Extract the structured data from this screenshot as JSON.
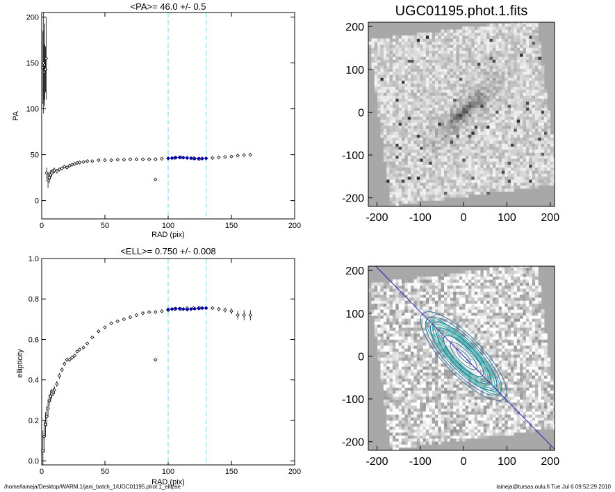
{
  "footer": {
    "left": "/home/laineja/Desktop/WARM.1/jani_batch_1/UGC01195.phot.1_ellipse",
    "right": "laineja@tursas.oulu.fi  Tue Jul  6 09:52:29 2010"
  },
  "colors": {
    "data": "#000000",
    "fit": "#0000aa",
    "marker": "#80e0e8",
    "contour": "#40b8b0",
    "pa_line": "#2020c0"
  },
  "chart_data": [
    {
      "type": "scatter",
      "title": "<PA>=  46.0 +/-   0.5",
      "xlabel": "RAD (pix)",
      "ylabel": "PA",
      "xlim": [
        0,
        200
      ],
      "ylim": [
        -20,
        205
      ],
      "xticks": [
        0,
        50,
        100,
        150,
        200
      ],
      "yticks": [
        0,
        50,
        100,
        150,
        200
      ],
      "vlines": [
        100,
        130
      ],
      "outlier": {
        "x": 90,
        "y": 23
      },
      "series": [
        {
          "x": [
            1,
            1.5,
            2,
            2.5,
            3,
            3.5,
            4,
            5,
            6,
            7,
            8,
            9,
            10,
            12,
            14,
            16,
            18,
            20,
            22,
            24,
            26,
            28,
            30,
            33,
            36,
            40,
            45,
            50,
            55,
            60,
            65,
            70,
            75,
            80,
            85,
            90,
            95,
            100,
            105,
            110,
            115,
            120,
            125,
            130,
            135,
            140,
            145,
            150,
            155,
            160,
            165
          ],
          "y": [
            145,
            150,
            140,
            148,
            143,
            155,
            30,
            22,
            25,
            28,
            30,
            32,
            33,
            32,
            34,
            35,
            37,
            36,
            38,
            39,
            40,
            41,
            41.5,
            42,
            43,
            43,
            44,
            44,
            44,
            44.5,
            44.5,
            45,
            45,
            45,
            45,
            45,
            45.5,
            46,
            46.5,
            47,
            46.5,
            46,
            45.5,
            46,
            46.5,
            47,
            47.5,
            48,
            49,
            49.5,
            50
          ],
          "err": [
            40,
            55,
            30,
            45,
            25,
            45,
            6,
            8,
            6,
            5,
            4,
            3,
            3,
            2.5,
            2,
            2,
            1.5,
            1.5,
            1.2,
            1,
            1,
            1,
            1,
            0.8,
            0.8,
            0.8,
            0.7,
            0.7,
            0.7,
            0.7,
            0.7,
            0.7,
            0.7,
            0.7,
            0.7,
            0.7,
            0.7,
            0.7,
            0.7,
            0.7,
            0.7,
            0.7,
            0.7,
            0.7,
            0.8,
            0.8,
            0.9,
            1,
            1.2,
            1.5,
            1.8
          ]
        },
        {
          "x": [
            100,
            103,
            106,
            109,
            112,
            115,
            118,
            121,
            124,
            127,
            130
          ],
          "y": [
            46,
            46.3,
            46.8,
            47,
            46.8,
            46.5,
            46.2,
            45.8,
            45.6,
            45.8,
            46
          ]
        }
      ]
    },
    {
      "type": "scatter",
      "title": "<ELL>= 0.750 +/-  0.008",
      "xlabel": "RAD (pix)",
      "ylabel": "ellipticity",
      "xlim": [
        0,
        200
      ],
      "ylim": [
        -0.02,
        1.0
      ],
      "xticks": [
        0,
        50,
        100,
        150,
        200
      ],
      "yticks": [
        0.0,
        0.2,
        0.4,
        0.6,
        0.8,
        1.0
      ],
      "vlines": [
        100,
        130
      ],
      "outlier": {
        "x": 90,
        "y": 0.5
      },
      "series": [
        {
          "x": [
            1,
            2,
            3,
            4,
            5,
            6,
            7,
            8,
            9,
            10,
            12,
            14,
            16,
            18,
            20,
            22,
            24,
            26,
            28,
            30,
            33,
            36,
            40,
            45,
            50,
            55,
            60,
            65,
            70,
            75,
            80,
            85,
            90,
            95,
            100,
            105,
            110,
            115,
            120,
            125,
            130,
            135,
            140,
            145,
            150,
            155,
            160,
            165
          ],
          "y": [
            0.05,
            0.12,
            0.18,
            0.22,
            0.26,
            0.3,
            0.32,
            0.33,
            0.34,
            0.35,
            0.38,
            0.42,
            0.45,
            0.48,
            0.5,
            0.5,
            0.51,
            0.52,
            0.54,
            0.55,
            0.56,
            0.58,
            0.61,
            0.64,
            0.66,
            0.68,
            0.69,
            0.7,
            0.71,
            0.72,
            0.73,
            0.735,
            0.735,
            0.74,
            0.745,
            0.75,
            0.75,
            0.755,
            0.755,
            0.755,
            0.755,
            0.755,
            0.75,
            0.745,
            0.74,
            0.72,
            0.72,
            0.72
          ],
          "err": [
            0.1,
            0.08,
            0.06,
            0.05,
            0.04,
            0.03,
            0.03,
            0.025,
            0.02,
            0.02,
            0.015,
            0.015,
            0.012,
            0.01,
            0.01,
            0.01,
            0.01,
            0.01,
            0.008,
            0.008,
            0.008,
            0.008,
            0.006,
            0.006,
            0.006,
            0.006,
            0.006,
            0.006,
            0.006,
            0.006,
            0.006,
            0.006,
            0.006,
            0.006,
            0.006,
            0.006,
            0.006,
            0.006,
            0.006,
            0.006,
            0.006,
            0.008,
            0.01,
            0.012,
            0.015,
            0.02,
            0.025,
            0.025
          ]
        },
        {
          "x": [
            100,
            103,
            106,
            109,
            112,
            115,
            118,
            121,
            124,
            127,
            130
          ],
          "y": [
            0.748,
            0.75,
            0.752,
            0.752,
            0.75,
            0.748,
            0.75,
            0.752,
            0.754,
            0.755,
            0.755
          ]
        }
      ]
    },
    {
      "type": "heatmap",
      "title": "UGC01195.phot.1.fits",
      "xlim": [
        -220,
        210
      ],
      "ylim": [
        -220,
        210
      ],
      "xticks": [
        -200,
        -100,
        0,
        100,
        200
      ],
      "yticks": [
        -200,
        -100,
        0,
        100,
        200
      ],
      "galaxy": {
        "pa_deg": 46,
        "ellipticity": 0.75,
        "semimajor": 110
      }
    },
    {
      "type": "heatmap",
      "title": "",
      "xlim": [
        -220,
        210
      ],
      "ylim": [
        -220,
        210
      ],
      "xticks": [
        -200,
        -100,
        0,
        100,
        200
      ],
      "yticks": [
        -200,
        -100,
        0,
        100,
        200
      ],
      "galaxy": {
        "pa_deg": 46,
        "ellipticity": 0.75,
        "semimajor": 110
      },
      "contour_radii": [
        10,
        20,
        30,
        40,
        50,
        60,
        70,
        80,
        90,
        100,
        110,
        120
      ],
      "pa_line": true
    }
  ]
}
